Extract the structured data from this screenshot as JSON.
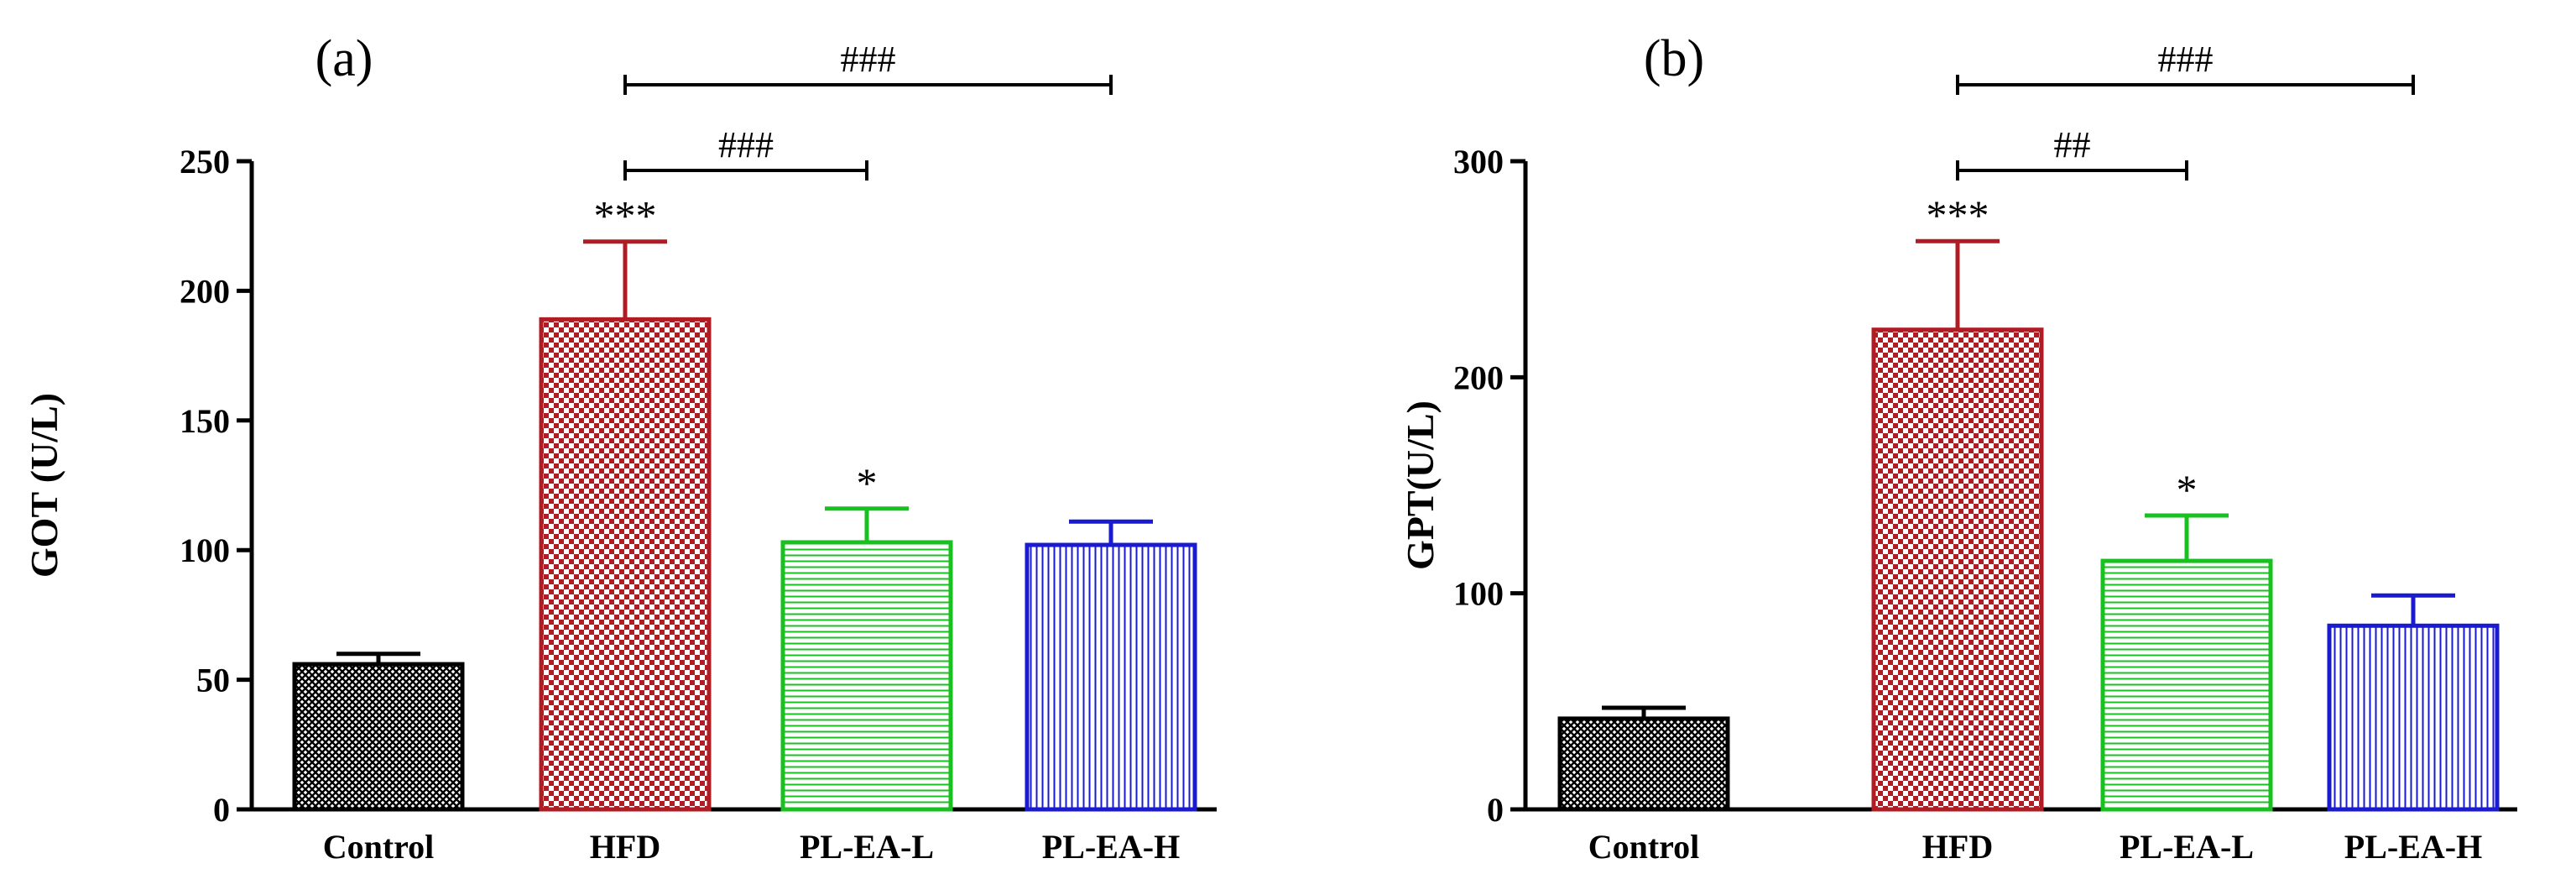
{
  "chart_data": [
    {
      "type": "bar",
      "panel_label": "(a)",
      "ylabel": "GOT (U/L)",
      "ylim": [
        0,
        250
      ],
      "yticks": [
        "0",
        "50",
        "100",
        "150",
        "200",
        "250"
      ],
      "categories": [
        "Control",
        "HFD",
        "PL-EA-L",
        "PL-EA-H"
      ],
      "values": [
        56,
        189,
        103,
        102
      ],
      "errors": [
        4,
        30,
        13,
        9
      ],
      "colors": [
        "#000000",
        "#b01c23",
        "#18c020",
        "#1a1ad0"
      ],
      "patterns": [
        "crosshatch",
        "checker",
        "horizontal",
        "vertical"
      ],
      "bar_annotations": [
        "",
        "***",
        "*",
        ""
      ],
      "comparisons": [
        {
          "from": "HFD",
          "to": "PL-EA-L",
          "label": "###"
        },
        {
          "from": "HFD",
          "to": "PL-EA-H",
          "label": "###"
        }
      ]
    },
    {
      "type": "bar",
      "panel_label": "(b)",
      "ylabel": "GPT(U/L)",
      "ylim": [
        0,
        300
      ],
      "yticks": [
        "0",
        "100",
        "200",
        "300"
      ],
      "categories": [
        "Control",
        "HFD",
        "PL-EA-L",
        "PL-EA-H"
      ],
      "values": [
        42,
        222,
        115,
        85
      ],
      "errors": [
        5,
        41,
        21,
        14
      ],
      "colors": [
        "#000000",
        "#b01c23",
        "#18c020",
        "#1a1ad0"
      ],
      "patterns": [
        "crosshatch",
        "checker",
        "horizontal",
        "vertical"
      ],
      "bar_annotations": [
        "",
        "***",
        "*",
        ""
      ],
      "comparisons": [
        {
          "from": "HFD",
          "to": "PL-EA-L",
          "label": "##"
        },
        {
          "from": "HFD",
          "to": "PL-EA-H",
          "label": "###"
        }
      ]
    }
  ]
}
